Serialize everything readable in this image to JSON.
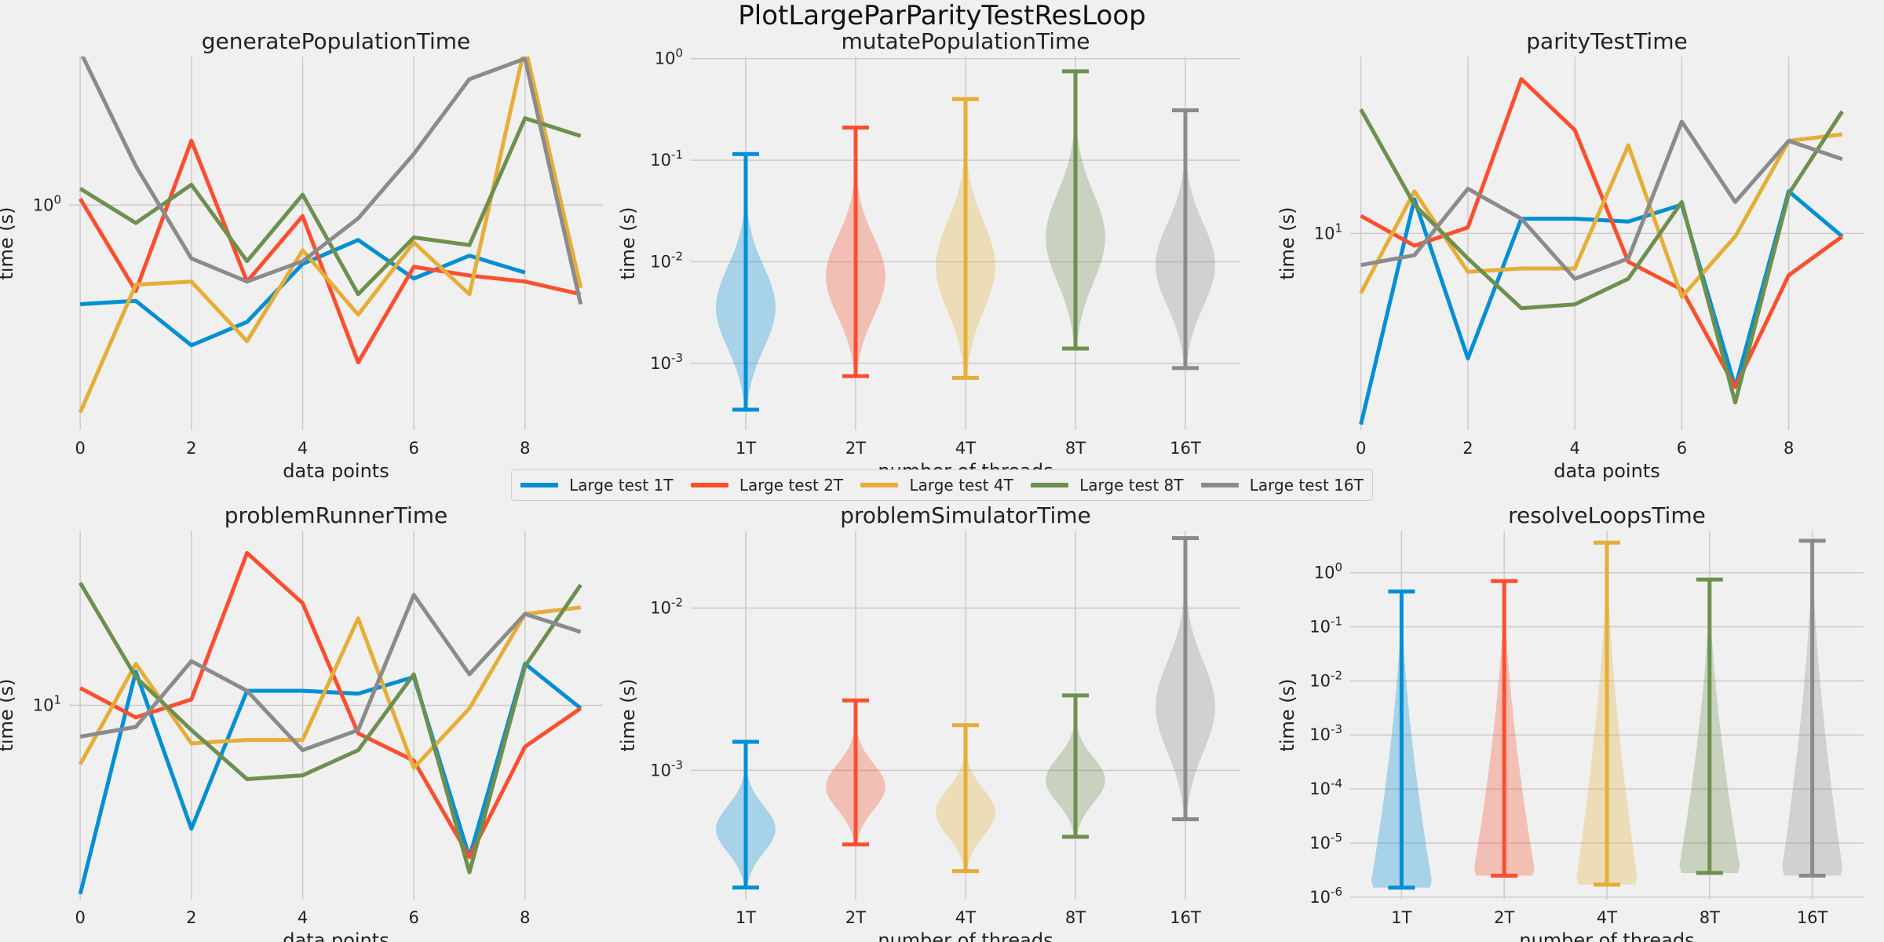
{
  "figure": {
    "title": "PlotLargeParParityTestResLoop",
    "legend": [
      "Large test 1T",
      "Large test 2T",
      "Large test 4T",
      "Large test 8T",
      "Large test 16T"
    ],
    "colors": [
      "#008fd5",
      "#fc4f30",
      "#e5ae38",
      "#6d904f",
      "#8b8b8b"
    ]
  },
  "chart_data": [
    {
      "type": "line",
      "title": "generatePopulationTime",
      "xlabel": "data points",
      "ylabel": "time (s)",
      "yscale": "log",
      "ylim": [
        0.35,
        2.0
      ],
      "xlim": [
        -0.2,
        9.4
      ],
      "x_ticks": [
        0,
        2,
        4,
        6,
        8
      ],
      "y_ticks": [
        {
          "value": 1.0,
          "label": "10^0"
        }
      ],
      "grid": true,
      "x": [
        0,
        1,
        2,
        3,
        4,
        5,
        6,
        7,
        8,
        9
      ],
      "series": [
        {
          "name": "Large test 1T",
          "values": [
            0.63,
            0.64,
            0.52,
            0.58,
            0.76,
            0.85,
            0.71,
            0.79,
            0.73,
            null
          ]
        },
        {
          "name": "Large test 2T",
          "values": [
            1.03,
            0.67,
            1.35,
            0.7,
            0.95,
            0.48,
            0.75,
            0.72,
            0.7,
            0.66
          ]
        },
        {
          "name": "Large test 4T",
          "values": [
            0.38,
            0.69,
            0.7,
            0.53,
            0.81,
            0.6,
            0.84,
            0.66,
            2.1,
            0.68
          ]
        },
        {
          "name": "Large test 8T",
          "values": [
            1.08,
            0.92,
            1.1,
            0.77,
            1.05,
            0.66,
            0.86,
            0.83,
            1.5,
            1.38
          ]
        },
        {
          "name": "Large test 16T",
          "values": [
            2.05,
            1.2,
            0.78,
            0.7,
            0.77,
            0.94,
            1.27,
            1.8,
            1.98,
            0.63
          ]
        }
      ]
    },
    {
      "type": "violin",
      "title": "mutatePopulationTime",
      "xlabel": "number of threads",
      "ylabel": "time (s)",
      "yscale": "log",
      "ylim": [
        0.00022,
        1.05
      ],
      "y_ticks": [
        {
          "value": 0.001,
          "label": "10^-3"
        },
        {
          "value": 0.01,
          "label": "10^-2"
        },
        {
          "value": 0.1,
          "label": "10^-1"
        },
        {
          "value": 1,
          "label": "10^0"
        }
      ],
      "grid": true,
      "categories": [
        "1T",
        "2T",
        "4T",
        "8T",
        "16T"
      ],
      "series": [
        {
          "min": 0.00035,
          "max": 0.115
        },
        {
          "min": 0.00075,
          "max": 0.21
        },
        {
          "min": 0.00072,
          "max": 0.4
        },
        {
          "min": 0.0014,
          "max": 0.75
        },
        {
          "min": 0.0009,
          "max": 0.31
        }
      ]
    },
    {
      "type": "line",
      "title": "parityTestTime",
      "xlabel": "data points",
      "ylabel": "time (s)",
      "yscale": "log",
      "ylim": [
        5.2,
        18.0
      ],
      "xlim": [
        -0.2,
        9.4
      ],
      "x_ticks": [
        0,
        2,
        4,
        6,
        8
      ],
      "y_ticks": [
        {
          "value": 10,
          "label": "10^1"
        }
      ],
      "grid": true,
      "x": [
        0,
        1,
        2,
        3,
        4,
        5,
        6,
        7,
        8,
        9
      ],
      "series": [
        {
          "name": "Large test 1T",
          "values": [
            5.3,
            11.2,
            6.6,
            10.5,
            10.5,
            10.4,
            11.0,
            6.0,
            11.5,
            9.9
          ]
        },
        {
          "name": "Large test 2T",
          "values": [
            10.6,
            9.6,
            10.2,
            16.7,
            14.1,
            9.1,
            8.3,
            6.0,
            8.7,
            9.9
          ]
        },
        {
          "name": "Large test 4T",
          "values": [
            8.2,
            11.5,
            8.8,
            8.9,
            8.9,
            13.4,
            8.1,
            9.9,
            13.6,
            13.9
          ]
        },
        {
          "name": "Large test 8T",
          "values": [
            15.1,
            11.0,
            9.2,
            7.8,
            7.9,
            8.6,
            11.1,
            5.7,
            11.4,
            15.0
          ]
        },
        {
          "name": "Large test 16T",
          "values": [
            9.0,
            9.3,
            11.6,
            10.5,
            8.6,
            9.2,
            14.5,
            11.1,
            13.6,
            12.8
          ]
        }
      ]
    },
    {
      "type": "line",
      "title": "problemRunnerTime",
      "xlabel": "data points",
      "ylabel": "time (s)",
      "yscale": "log",
      "ylim": [
        5.2,
        18.0
      ],
      "xlim": [
        -0.2,
        9.4
      ],
      "x_ticks": [
        0,
        2,
        4,
        6,
        8
      ],
      "y_ticks": [
        {
          "value": 10,
          "label": "10^1"
        }
      ],
      "grid": true,
      "x": [
        0,
        1,
        2,
        3,
        4,
        5,
        6,
        7,
        8,
        9
      ],
      "series": [
        {
          "name": "Large test 1T",
          "values": [
            5.3,
            11.2,
            6.6,
            10.5,
            10.5,
            10.4,
            11.0,
            6.0,
            11.5,
            9.9
          ]
        },
        {
          "name": "Large test 2T",
          "values": [
            10.6,
            9.6,
            10.2,
            16.7,
            14.1,
            9.1,
            8.3,
            6.0,
            8.7,
            9.9
          ]
        },
        {
          "name": "Large test 4T",
          "values": [
            8.2,
            11.5,
            8.8,
            8.9,
            8.9,
            13.4,
            8.1,
            9.9,
            13.6,
            13.9
          ]
        },
        {
          "name": "Large test 8T",
          "values": [
            15.1,
            11.0,
            9.2,
            7.8,
            7.9,
            8.6,
            11.1,
            5.7,
            11.4,
            15.0
          ]
        },
        {
          "name": "Large test 16T",
          "values": [
            9.0,
            9.3,
            11.6,
            10.5,
            8.6,
            9.2,
            14.5,
            11.1,
            13.6,
            12.8
          ]
        }
      ]
    },
    {
      "type": "violin",
      "title": "problemSimulatorTime",
      "xlabel": "number of threads",
      "ylabel": "time (s)",
      "yscale": "log",
      "ylim": [
        0.00016,
        0.03
      ],
      "y_ticks": [
        {
          "value": 0.001,
          "label": "10^-3"
        },
        {
          "value": 0.01,
          "label": "10^-2"
        }
      ],
      "grid": true,
      "categories": [
        "1T",
        "2T",
        "4T",
        "8T",
        "16T"
      ],
      "series": [
        {
          "min": 0.00019,
          "max": 0.0015
        },
        {
          "min": 0.00035,
          "max": 0.0027
        },
        {
          "min": 0.00024,
          "max": 0.0019
        },
        {
          "min": 0.00039,
          "max": 0.0029
        },
        {
          "min": 0.0005,
          "max": 0.027
        }
      ]
    },
    {
      "type": "violin",
      "title": "resolveLoopsTime",
      "xlabel": "number of threads",
      "ylabel": "time (s)",
      "yscale": "log",
      "ylim": [
        9e-07,
        6.0
      ],
      "y_ticks": [
        {
          "value": 1e-06,
          "label": "10^-6"
        },
        {
          "value": 1e-05,
          "label": "10^-5"
        },
        {
          "value": 0.0001,
          "label": "10^-4"
        },
        {
          "value": 0.001,
          "label": "10^-3"
        },
        {
          "value": 0.01,
          "label": "10^-2"
        },
        {
          "value": 0.1,
          "label": "10^-1"
        },
        {
          "value": 1,
          "label": "10^0"
        }
      ],
      "grid": true,
      "categories": [
        "1T",
        "2T",
        "4T",
        "8T",
        "16T"
      ],
      "series": [
        {
          "min": 1.5e-06,
          "max": 0.45
        },
        {
          "min": 2.5e-06,
          "max": 0.7
        },
        {
          "min": 1.7e-06,
          "max": 3.6
        },
        {
          "min": 2.8e-06,
          "max": 0.75
        },
        {
          "min": 2.5e-06,
          "max": 3.9
        }
      ]
    }
  ]
}
